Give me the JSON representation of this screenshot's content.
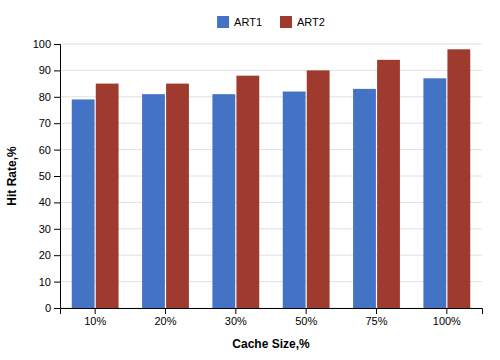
{
  "chart_data": {
    "type": "bar",
    "xlabel": "Cache Size,%",
    "ylabel": "Hit Rate,%",
    "categories": [
      "10%",
      "20%",
      "30%",
      "50%",
      "75%",
      "100%"
    ],
    "series": [
      {
        "name": "ART1",
        "color": "#4472C4",
        "values": [
          79,
          81,
          81,
          82,
          83,
          87
        ]
      },
      {
        "name": "ART2",
        "color": "#9E3B2E",
        "values": [
          85,
          85,
          88,
          90,
          94,
          98
        ]
      }
    ],
    "ylim": [
      0,
      100
    ],
    "yticks": [
      0,
      10,
      20,
      30,
      40,
      50,
      60,
      70,
      80,
      90,
      100
    ],
    "grid": true,
    "legend": "top"
  }
}
